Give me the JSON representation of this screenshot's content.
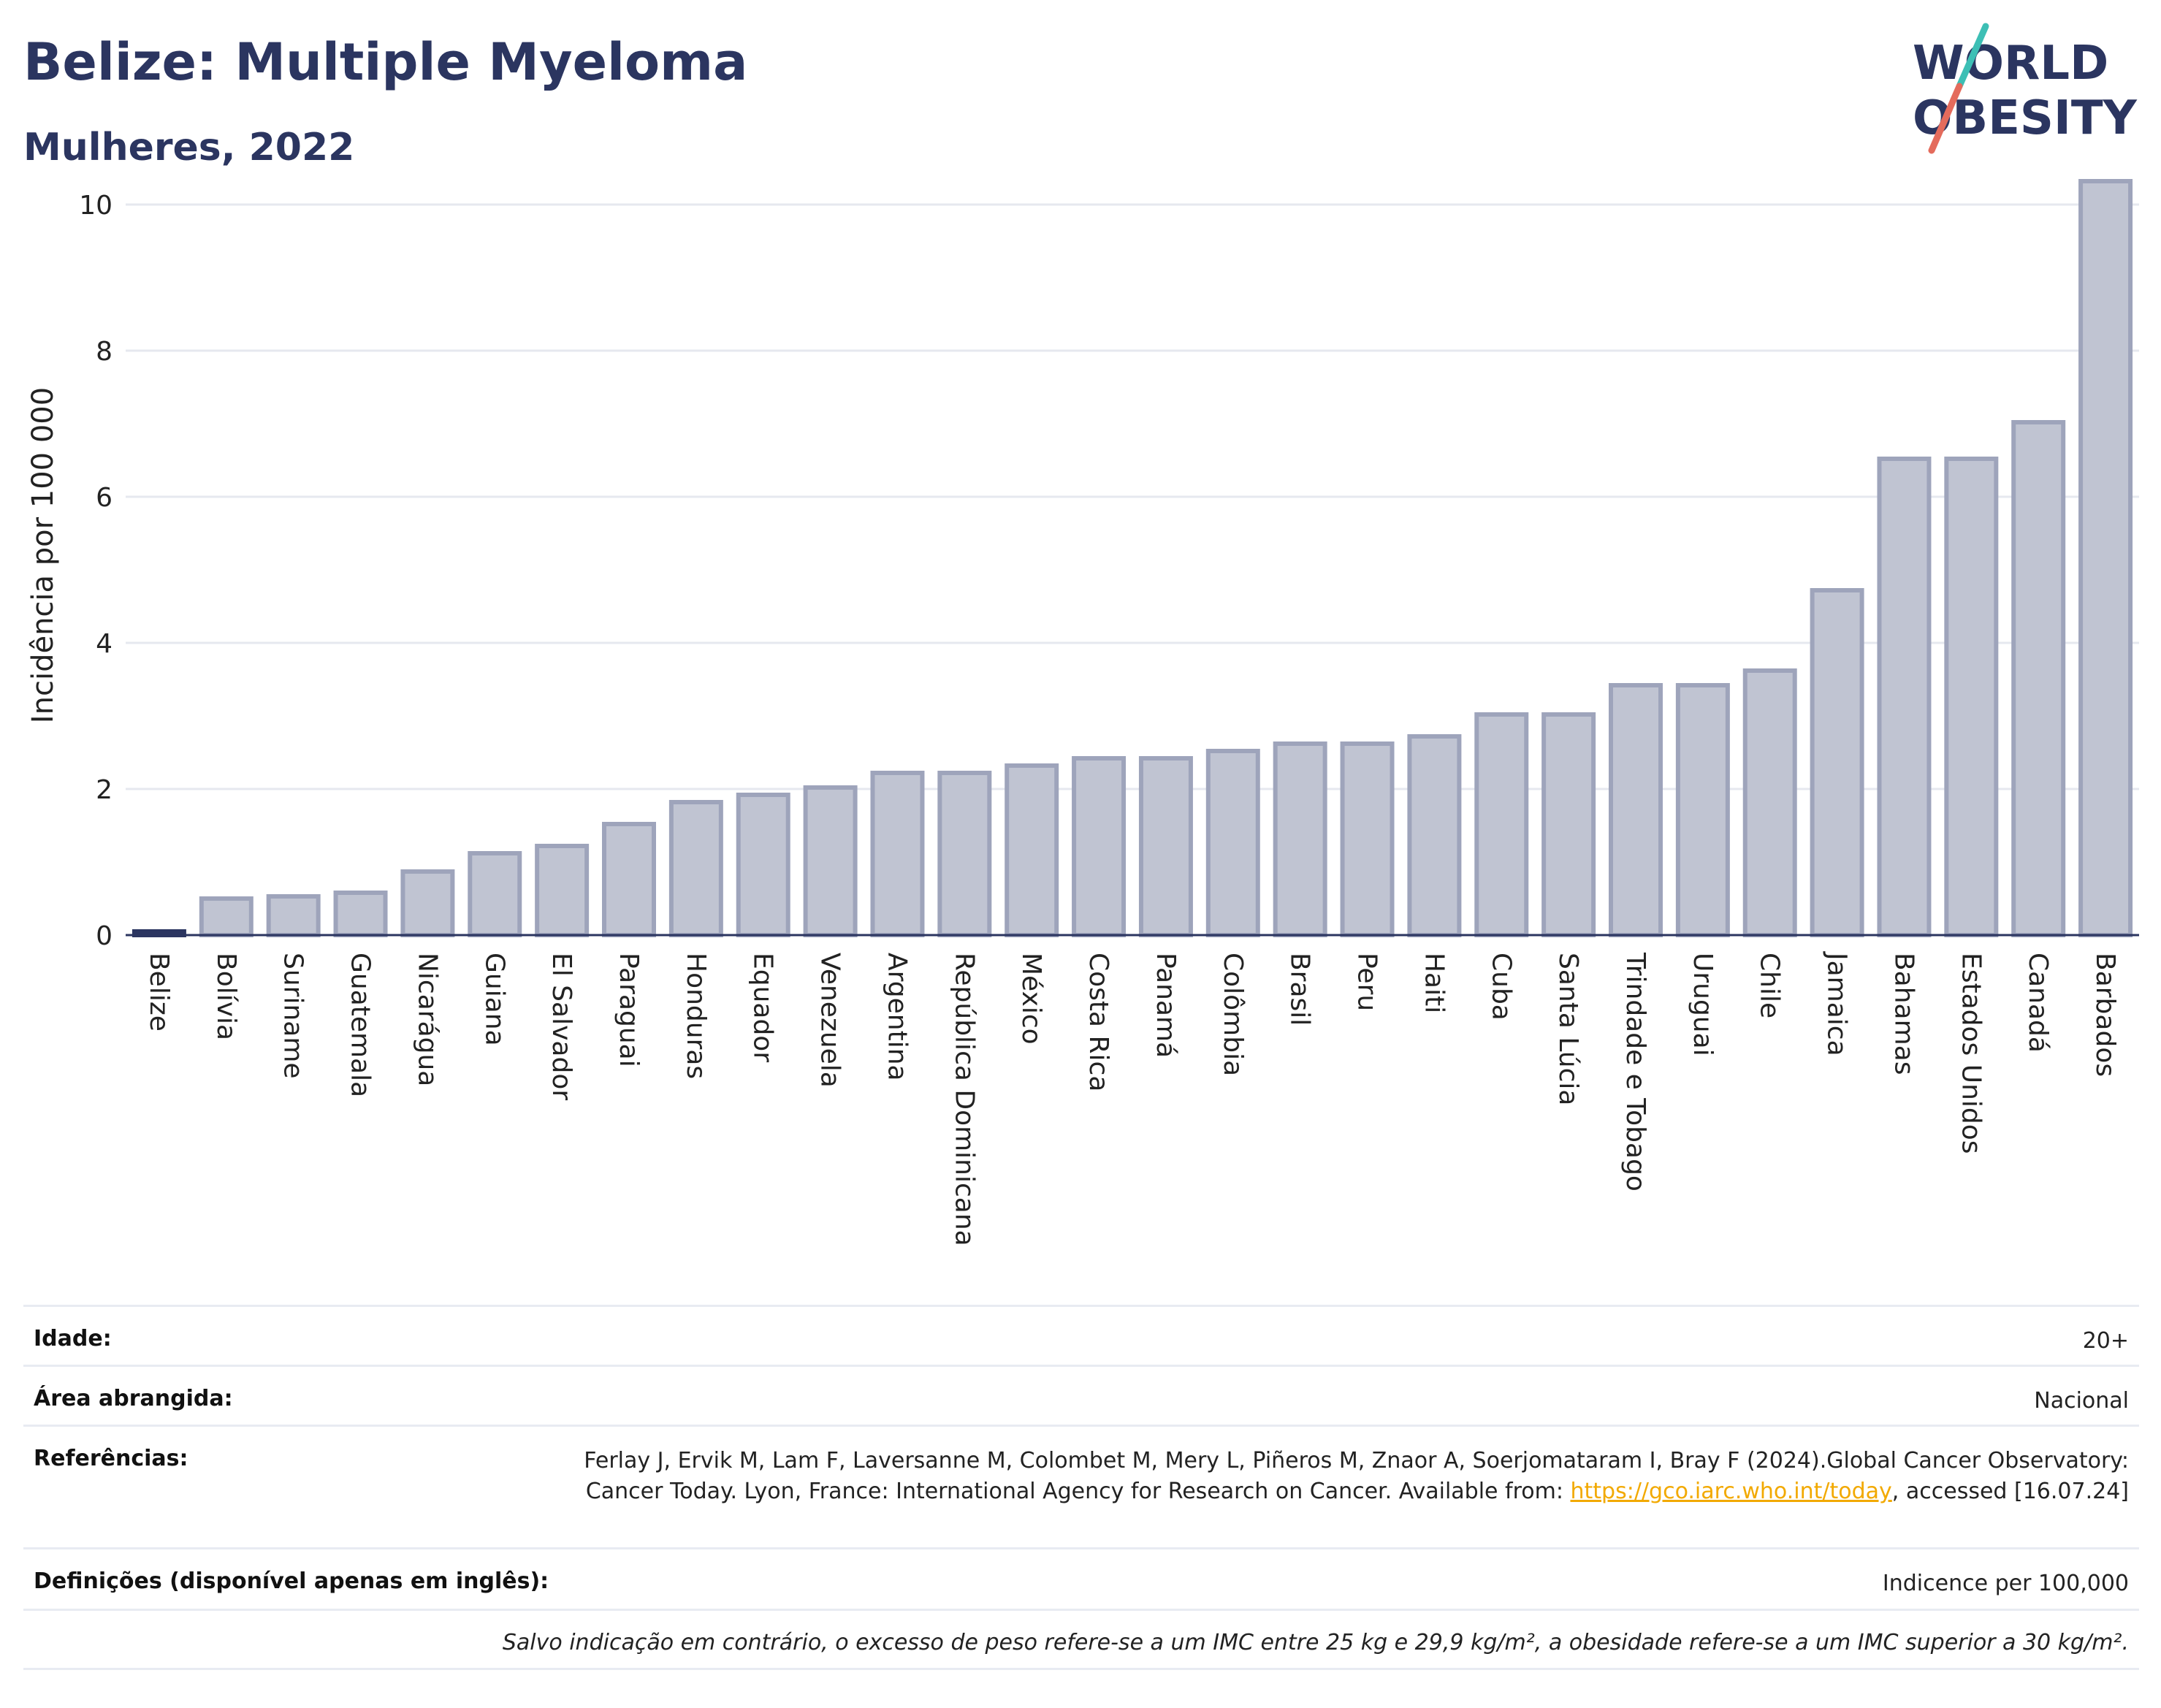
{
  "header": {
    "title": "Belize: Multiple Myeloma",
    "subtitle": "Mulheres, 2022"
  },
  "logo": {
    "line1": "WORLD",
    "line2": "OBESITY"
  },
  "colors": {
    "bar_fill": "#c0c4d2",
    "bar_stroke": "#9ea4bb",
    "highlight": "#2b3560",
    "grid": "#e6e8ef",
    "logo_slash_teal": "#3dbfb5",
    "logo_slash_red": "#e46b5c"
  },
  "chart_data": {
    "type": "bar",
    "ylabel": "Incidência por 100 000",
    "ylim": [
      0,
      10.4
    ],
    "yticks": [
      0,
      2,
      4,
      6,
      8,
      10
    ],
    "grid": true,
    "highlight_category": "Belize",
    "categories": [
      "Belize",
      "Bolívia",
      "Suriname",
      "Guatemala",
      "Nicarágua",
      "Guiana",
      "El Salvador",
      "Paraguai",
      "Honduras",
      "Equador",
      "Venezuela",
      "Argentina",
      "República Dominicana",
      "México",
      "Costa Rica",
      "Panamá",
      "Colômbia",
      "Brasil",
      "Peru",
      "Haiti",
      "Cuba",
      "Santa Lúcia",
      "Trindade e Tobago",
      "Uruguai",
      "Chile",
      "Jamaica",
      "Bahamas",
      "Estados Unidos",
      "Canadá",
      "Barbados"
    ],
    "values": [
      0.05,
      0.5,
      0.53,
      0.58,
      0.87,
      1.12,
      1.22,
      1.52,
      1.82,
      1.92,
      2.02,
      2.22,
      2.22,
      2.32,
      2.42,
      2.42,
      2.52,
      2.62,
      2.62,
      2.72,
      3.02,
      3.02,
      3.42,
      3.42,
      3.62,
      4.72,
      6.52,
      6.52,
      7.02,
      10.32
    ]
  },
  "meta": {
    "age_label": "Idade:",
    "age_value": "20+",
    "area_label": "Área abrangida:",
    "area_value": "Nacional",
    "ref_label": "Referências:",
    "ref_text_1": "Ferlay J, Ervik M, Lam F, Laversanne M, Colombet M, Mery L, Piñeros M, Znaor A, Soerjomataram I, Bray F (2024).Global Cancer Observatory: Cancer Today. Lyon, France: International Agency for Research on Cancer. Available from: ",
    "ref_link": "https://gco.iarc.who.int/today",
    "ref_text_2": ", accessed [16.07.24]",
    "def_label": "Definições (disponível apenas em inglês):",
    "def_value": "Indicence per 100,000",
    "note": "Salvo indicação em contrário, o excesso de peso refere-se a um IMC entre 25 kg e 29,9 kg/m², a obesidade refere-se a um IMC superior a 30 kg/m²."
  }
}
